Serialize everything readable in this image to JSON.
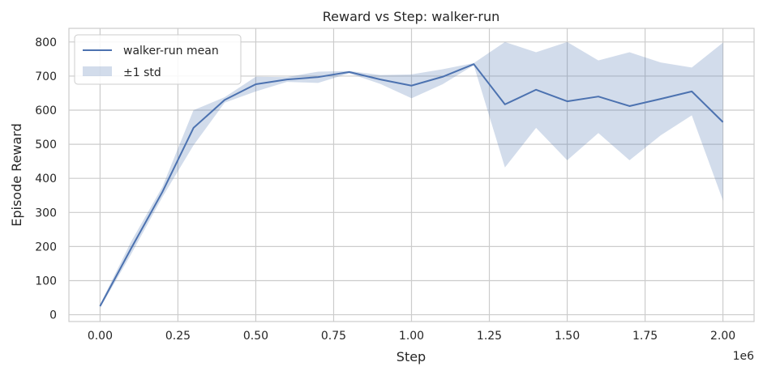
{
  "chart_data": {
    "type": "line",
    "title": "Reward vs Step: walker-run",
    "xlabel": "Step",
    "ylabel": "Episode Reward",
    "x_offset_label": "1e6",
    "x": [
      0,
      0.1,
      0.2,
      0.3,
      0.4,
      0.5,
      0.6,
      0.7,
      0.8,
      0.9,
      1.0,
      1.1,
      1.2,
      1.3,
      1.4,
      1.5,
      1.6,
      1.7,
      1.8,
      1.9,
      2.0
    ],
    "xlim": [
      -0.1,
      2.1
    ],
    "ylim": [
      -20,
      840
    ],
    "x_ticks": [
      0.0,
      0.25,
      0.5,
      0.75,
      1.0,
      1.25,
      1.5,
      1.75,
      2.0
    ],
    "x_tick_labels": [
      "0.00",
      "0.25",
      "0.50",
      "0.75",
      "1.00",
      "1.25",
      "1.50",
      "1.75",
      "2.00"
    ],
    "y_ticks": [
      0,
      100,
      200,
      300,
      400,
      500,
      600,
      700,
      800
    ],
    "y_tick_labels": [
      "0",
      "100",
      "200",
      "300",
      "400",
      "500",
      "600",
      "700",
      "800"
    ],
    "grid": true,
    "legend_position": "top-left",
    "series": [
      {
        "name": "walker-run mean",
        "color": "#4c72b0",
        "values": [
          25,
          195,
          360,
          548,
          630,
          676,
          690,
          697,
          712,
          690,
          672,
          698,
          735,
          617,
          660,
          626,
          640,
          612,
          633,
          655,
          565
        ]
      }
    ],
    "band": {
      "name": "±1 std",
      "color": "#4c72b0",
      "opacity": 0.25,
      "upper": [
        30,
        215,
        375,
        600,
        638,
        698,
        697,
        713,
        715,
        703,
        705,
        720,
        738,
        800,
        770,
        800,
        746,
        770,
        740,
        725,
        798
      ],
      "lower": [
        20,
        178,
        345,
        497,
        622,
        655,
        683,
        680,
        708,
        677,
        635,
        676,
        732,
        432,
        548,
        453,
        533,
        453,
        526,
        585,
        335
      ]
    }
  }
}
